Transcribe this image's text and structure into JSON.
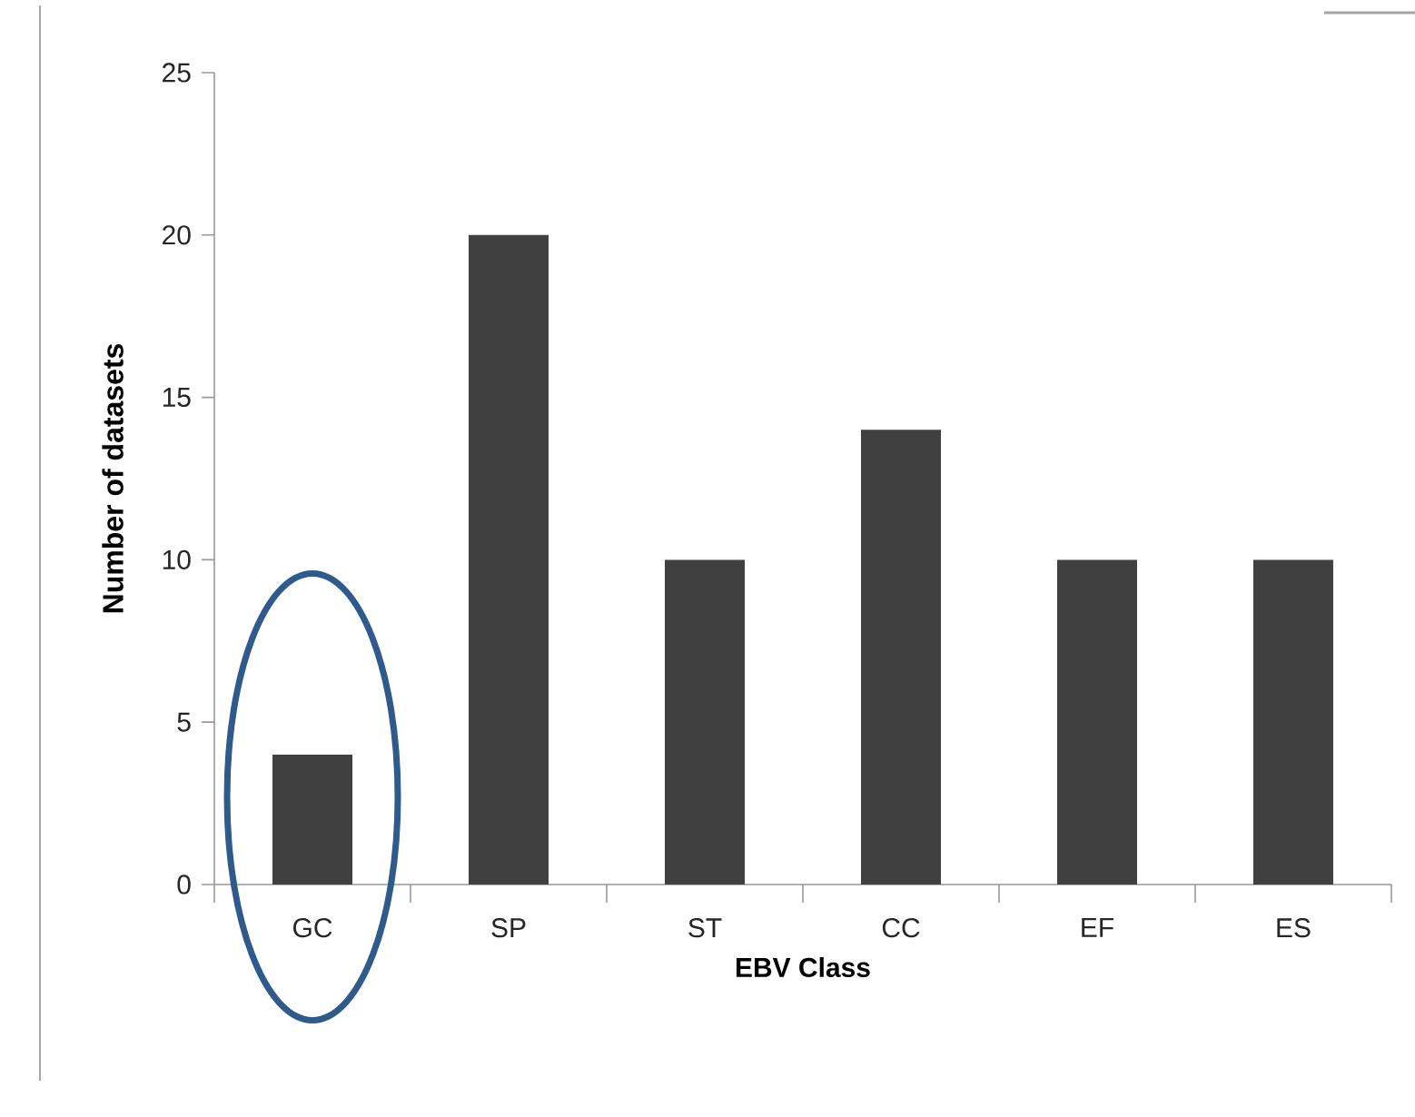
{
  "chart_data": {
    "type": "bar",
    "xlabel": "EBV Class",
    "ylabel": "Number of datasets",
    "categories": [
      "GC",
      "SP",
      "ST",
      "CC",
      "EF",
      "ES"
    ],
    "values": [
      4,
      20,
      10,
      14,
      10,
      10
    ],
    "color": "#404040",
    "ylim": [
      0,
      25
    ],
    "yticks": [
      0,
      5,
      10,
      15,
      20,
      25
    ]
  }
}
